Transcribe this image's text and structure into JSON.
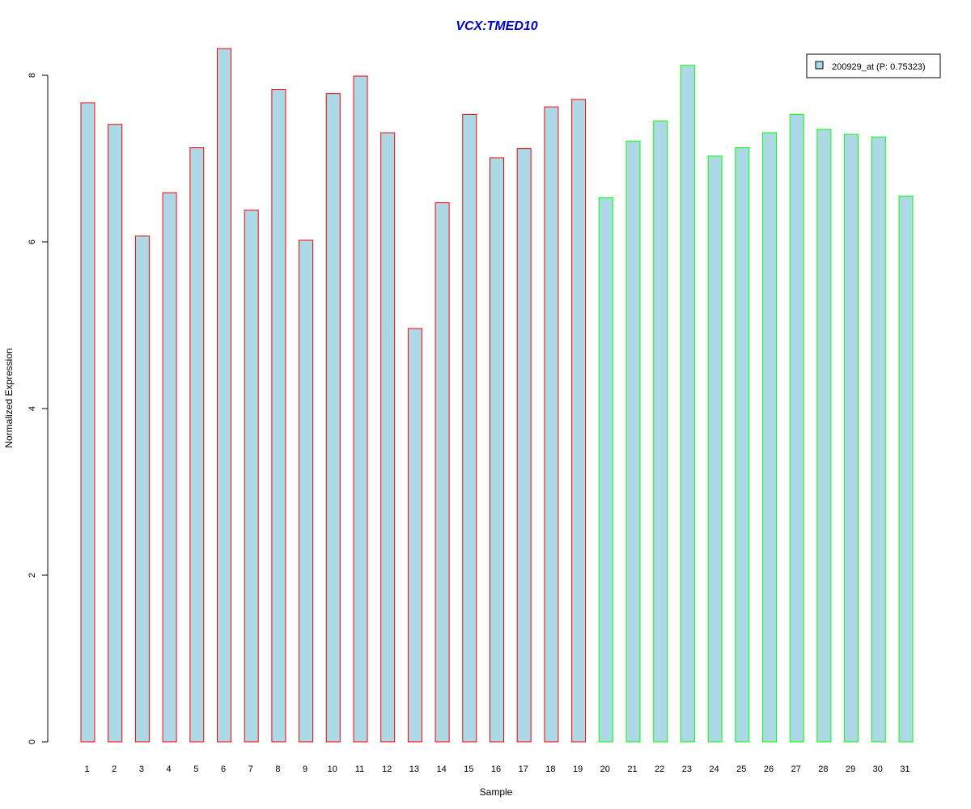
{
  "chart_data": {
    "type": "bar",
    "title": "VCX:TMED10",
    "xlabel": "Sample",
    "ylabel": "Normalized Expression",
    "ylim": [
      0,
      8.3
    ],
    "yticks": [
      "0",
      "2",
      "4",
      "6",
      "8"
    ],
    "categories": [
      "1",
      "2",
      "3",
      "4",
      "5",
      "6",
      "7",
      "8",
      "9",
      "10",
      "11",
      "12",
      "13",
      "14",
      "15",
      "16",
      "17",
      "18",
      "19",
      "20",
      "21",
      "22",
      "23",
      "24",
      "25",
      "26",
      "27",
      "28",
      "29",
      "30",
      "31"
    ],
    "series": [
      {
        "name": "200929_at (P: 0.75323)",
        "values": [
          7.67,
          7.41,
          6.07,
          6.59,
          7.13,
          8.32,
          6.38,
          7.83,
          6.02,
          7.78,
          7.99,
          7.31,
          4.96,
          6.47,
          7.53,
          7.01,
          7.12,
          7.62,
          7.71,
          6.53,
          7.21,
          7.45,
          8.12,
          7.03,
          7.13,
          7.31,
          7.53,
          7.35,
          7.29,
          7.26,
          6.55
        ]
      }
    ],
    "groups": [
      "red",
      "red",
      "red",
      "red",
      "red",
      "red",
      "red",
      "red",
      "red",
      "red",
      "red",
      "red",
      "red",
      "red",
      "red",
      "red",
      "red",
      "red",
      "red",
      "green",
      "green",
      "green",
      "green",
      "green",
      "green",
      "green",
      "green",
      "green",
      "green",
      "green",
      "green"
    ],
    "colors": {
      "fill": "#add8e6",
      "group_red": "#ff0000",
      "group_green": "#00ff00",
      "title": "#0000cc"
    },
    "legend_position": "top-right",
    "grid": false
  }
}
